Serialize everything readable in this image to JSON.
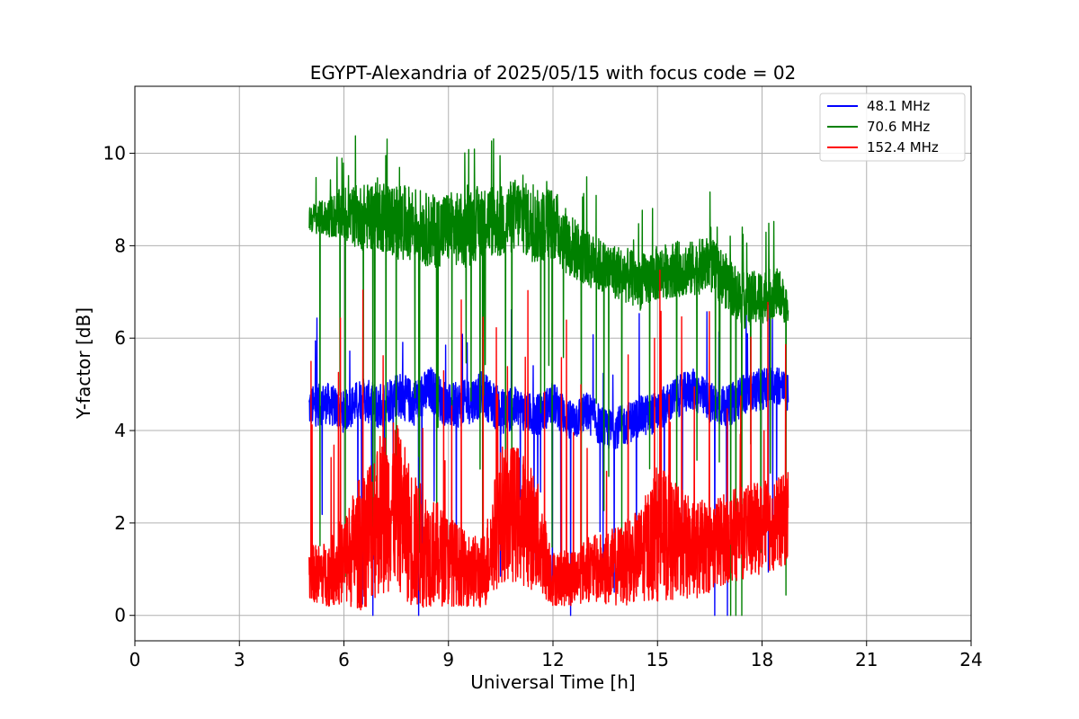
{
  "chart_data": {
    "type": "line",
    "title": "EGYPT-Alexandria of 2025/05/15 with focus code = 02",
    "xlabel": "Universal Time [h]",
    "ylabel": "Y-factor [dB]",
    "xlim": [
      0,
      24
    ],
    "ylim": [
      -0.55,
      11.45
    ],
    "xticks": [
      0,
      3,
      6,
      9,
      12,
      15,
      18,
      21,
      24
    ],
    "xtick_labels": [
      "0",
      "3",
      "6",
      "9",
      "12",
      "15",
      "18",
      "21",
      "24"
    ],
    "yticks": [
      0,
      2,
      4,
      6,
      8,
      10
    ],
    "ytick_labels": [
      "0",
      "2",
      "4",
      "6",
      "8",
      "10"
    ],
    "grid": true,
    "legend_position": "top-right",
    "x": [
      5.0,
      5.5,
      6.0,
      6.5,
      7.0,
      7.5,
      8.0,
      8.5,
      9.0,
      9.5,
      10.0,
      10.5,
      11.0,
      11.5,
      12.0,
      12.5,
      13.0,
      13.5,
      14.0,
      14.5,
      15.0,
      15.5,
      16.0,
      16.5,
      17.0,
      17.5,
      18.0,
      18.5,
      18.75
    ],
    "series": [
      {
        "name": "  48.1 MHz",
        "color": "#0000ff",
        "values": [
          4.5,
          4.6,
          4.4,
          4.7,
          4.5,
          4.8,
          4.6,
          4.9,
          4.5,
          4.6,
          4.8,
          4.4,
          4.5,
          4.3,
          4.6,
          4.2,
          4.4,
          4.0,
          4.1,
          4.3,
          4.4,
          4.7,
          4.9,
          4.6,
          4.5,
          4.8,
          4.9,
          5.0,
          4.8
        ],
        "spread": [
          0.45,
          0.45,
          0.45,
          0.45,
          0.5,
          0.5,
          0.5,
          0.5,
          0.5,
          0.5,
          0.5,
          0.5,
          0.45,
          0.45,
          0.45,
          0.45,
          0.45,
          0.45,
          0.45,
          0.45,
          0.45,
          0.45,
          0.45,
          0.45,
          0.45,
          0.45,
          0.45,
          0.45,
          0.4
        ]
      },
      {
        "name": "  70.6 MHz",
        "color": "#008000",
        "values": [
          8.6,
          8.6,
          8.7,
          8.6,
          8.7,
          8.5,
          8.5,
          8.3,
          8.4,
          8.3,
          8.6,
          8.5,
          8.7,
          8.4,
          8.5,
          8.0,
          7.7,
          7.5,
          7.4,
          7.2,
          7.4,
          7.5,
          7.5,
          7.6,
          7.2,
          6.8,
          6.9,
          7.0,
          6.6
        ],
        "spread": [
          0.3,
          0.4,
          0.6,
          0.7,
          0.8,
          0.8,
          0.8,
          0.8,
          0.8,
          0.8,
          0.8,
          0.8,
          0.8,
          0.8,
          0.8,
          0.7,
          0.6,
          0.6,
          0.6,
          0.6,
          0.6,
          0.6,
          0.6,
          0.6,
          0.6,
          0.6,
          0.6,
          0.5,
          0.4
        ]
      },
      {
        "name": "  152.4 MHz",
        "color": "#ff0000",
        "values": [
          0.9,
          0.9,
          1.2,
          1.6,
          2.2,
          2.4,
          1.6,
          1.4,
          1.2,
          1.0,
          0.9,
          2.2,
          2.2,
          1.8,
          0.8,
          0.8,
          1.0,
          1.0,
          1.1,
          1.3,
          1.8,
          1.6,
          1.4,
          1.5,
          1.7,
          1.8,
          1.9,
          2.0,
          2.1
        ],
        "spread": [
          0.6,
          0.7,
          1.0,
          1.5,
          1.8,
          1.8,
          1.5,
          1.2,
          1.0,
          0.8,
          0.8,
          1.5,
          1.5,
          1.3,
          0.6,
          0.6,
          0.7,
          0.8,
          0.9,
          1.0,
          1.5,
          1.3,
          1.1,
          1.0,
          1.0,
          1.0,
          1.0,
          1.0,
          1.0
        ]
      }
    ]
  }
}
